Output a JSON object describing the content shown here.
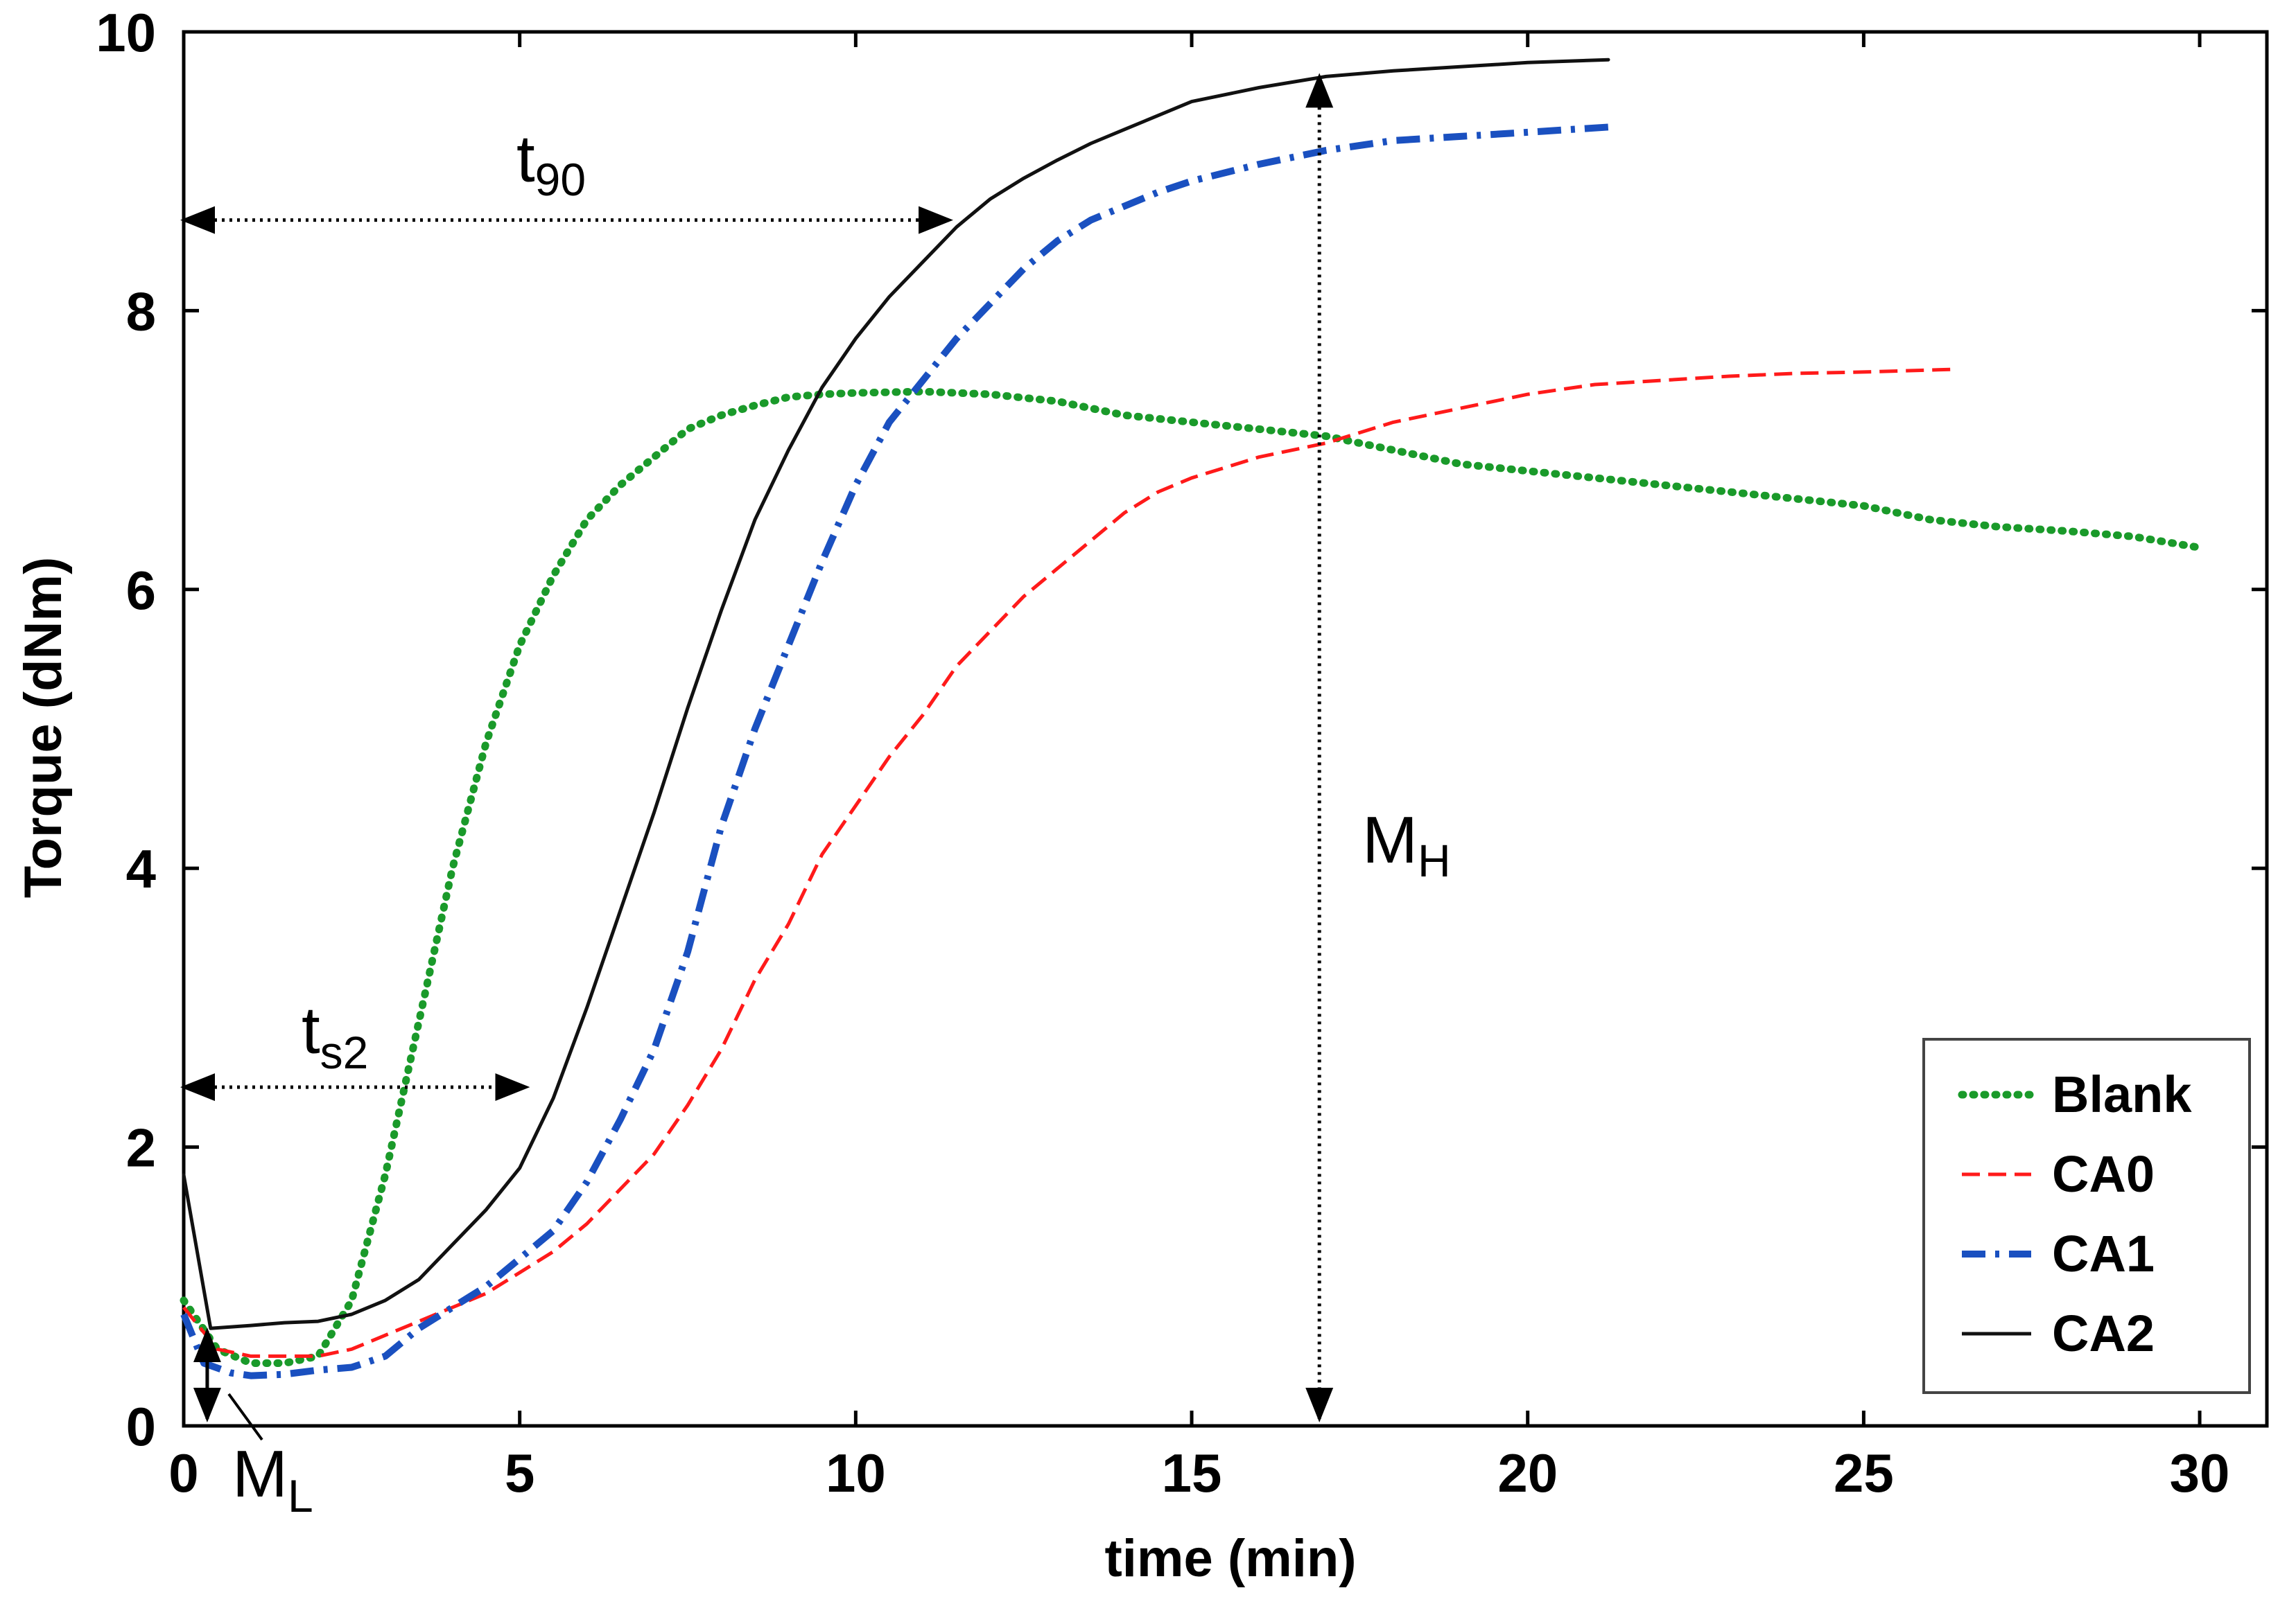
{
  "chart_data": {
    "type": "line",
    "title": "",
    "xlabel": "time (min)",
    "ylabel": "Torque (dNm)",
    "xlim": [
      0,
      31
    ],
    "ylim": [
      0,
      10
    ],
    "xticks": [
      0,
      5,
      10,
      15,
      20,
      25,
      30
    ],
    "yticks": [
      0,
      2,
      4,
      6,
      8,
      10
    ],
    "xtick_labels": [
      "0",
      "5",
      "10",
      "15",
      "20",
      "25",
      "30"
    ],
    "ytick_labels": [
      "0",
      "2",
      "4",
      "6",
      "8",
      "10"
    ],
    "grid": false,
    "legend_position": "bottom-right",
    "series": [
      {
        "name": "Blank",
        "color": "#1a9a2a",
        "style": "dotted",
        "points": [
          [
            0,
            0.9
          ],
          [
            0.5,
            0.55
          ],
          [
            1,
            0.45
          ],
          [
            1.5,
            0.45
          ],
          [
            2,
            0.5
          ],
          [
            2.5,
            0.9
          ],
          [
            3,
            1.8
          ],
          [
            3.5,
            2.9
          ],
          [
            4,
            4.0
          ],
          [
            4.5,
            4.9
          ],
          [
            5,
            5.6
          ],
          [
            5.5,
            6.1
          ],
          [
            6,
            6.5
          ],
          [
            6.5,
            6.75
          ],
          [
            7,
            6.95
          ],
          [
            7.5,
            7.15
          ],
          [
            8,
            7.25
          ],
          [
            8.5,
            7.32
          ],
          [
            9,
            7.38
          ],
          [
            9.5,
            7.4
          ],
          [
            10,
            7.41
          ],
          [
            11,
            7.42
          ],
          [
            12,
            7.4
          ],
          [
            13,
            7.35
          ],
          [
            14,
            7.25
          ],
          [
            15,
            7.2
          ],
          [
            16,
            7.15
          ],
          [
            17,
            7.1
          ],
          [
            18,
            7.0
          ],
          [
            19,
            6.9
          ],
          [
            20,
            6.85
          ],
          [
            21,
            6.8
          ],
          [
            22,
            6.75
          ],
          [
            23,
            6.7
          ],
          [
            24,
            6.65
          ],
          [
            25,
            6.6
          ],
          [
            26,
            6.5
          ],
          [
            27,
            6.45
          ],
          [
            28,
            6.42
          ],
          [
            29,
            6.38
          ],
          [
            30,
            6.3
          ]
        ]
      },
      {
        "name": "CA0",
        "color": "#ff1a1a",
        "style": "dashed",
        "points": [
          [
            0,
            0.85
          ],
          [
            0.5,
            0.55
          ],
          [
            1,
            0.5
          ],
          [
            1.5,
            0.5
          ],
          [
            2,
            0.5
          ],
          [
            2.5,
            0.55
          ],
          [
            3,
            0.65
          ],
          [
            3.5,
            0.75
          ],
          [
            4,
            0.85
          ],
          [
            4.5,
            0.95
          ],
          [
            5,
            1.1
          ],
          [
            5.5,
            1.25
          ],
          [
            6,
            1.45
          ],
          [
            6.5,
            1.7
          ],
          [
            7,
            1.95
          ],
          [
            7.5,
            2.3
          ],
          [
            8,
            2.7
          ],
          [
            8.5,
            3.2
          ],
          [
            9,
            3.6
          ],
          [
            9.5,
            4.1
          ],
          [
            10,
            4.45
          ],
          [
            10.5,
            4.8
          ],
          [
            11,
            5.1
          ],
          [
            11.5,
            5.45
          ],
          [
            12,
            5.7
          ],
          [
            12.5,
            5.95
          ],
          [
            13,
            6.15
          ],
          [
            13.5,
            6.35
          ],
          [
            14,
            6.55
          ],
          [
            14.5,
            6.7
          ],
          [
            15,
            6.8
          ],
          [
            16,
            6.95
          ],
          [
            17,
            7.05
          ],
          [
            18,
            7.2
          ],
          [
            19,
            7.3
          ],
          [
            20,
            7.4
          ],
          [
            21,
            7.47
          ],
          [
            22,
            7.5
          ],
          [
            23,
            7.53
          ],
          [
            24,
            7.55
          ],
          [
            25,
            7.56
          ],
          [
            26.4,
            7.58
          ]
        ]
      },
      {
        "name": "CA1",
        "color": "#1a50c0",
        "style": "dashdot",
        "points": [
          [
            0,
            0.8
          ],
          [
            0.3,
            0.45
          ],
          [
            0.7,
            0.38
          ],
          [
            1,
            0.36
          ],
          [
            1.5,
            0.37
          ],
          [
            2,
            0.4
          ],
          [
            2.5,
            0.42
          ],
          [
            3,
            0.5
          ],
          [
            3.5,
            0.7
          ],
          [
            4,
            0.85
          ],
          [
            4.5,
            1.0
          ],
          [
            5,
            1.2
          ],
          [
            5.5,
            1.4
          ],
          [
            6,
            1.75
          ],
          [
            6.5,
            2.2
          ],
          [
            7,
            2.7
          ],
          [
            7.5,
            3.4
          ],
          [
            8,
            4.3
          ],
          [
            8.5,
            5.0
          ],
          [
            9,
            5.6
          ],
          [
            9.5,
            6.2
          ],
          [
            10,
            6.75
          ],
          [
            10.5,
            7.2
          ],
          [
            11,
            7.5
          ],
          [
            11.5,
            7.8
          ],
          [
            12,
            8.05
          ],
          [
            12.5,
            8.3
          ],
          [
            13,
            8.5
          ],
          [
            13.5,
            8.65
          ],
          [
            14,
            8.75
          ],
          [
            14.5,
            8.85
          ],
          [
            15,
            8.93
          ],
          [
            16,
            9.05
          ],
          [
            17,
            9.15
          ],
          [
            18,
            9.22
          ],
          [
            19,
            9.25
          ],
          [
            20,
            9.28
          ],
          [
            21.3,
            9.32
          ]
        ]
      },
      {
        "name": "CA2",
        "color": "#111111",
        "style": "solid",
        "points": [
          [
            0,
            1.8
          ],
          [
            0.4,
            0.7
          ],
          [
            1,
            0.72
          ],
          [
            1.5,
            0.74
          ],
          [
            2,
            0.75
          ],
          [
            2.5,
            0.8
          ],
          [
            3,
            0.9
          ],
          [
            3.5,
            1.05
          ],
          [
            4,
            1.3
          ],
          [
            4.5,
            1.55
          ],
          [
            5,
            1.85
          ],
          [
            5.5,
            2.35
          ],
          [
            6,
            3.0
          ],
          [
            6.5,
            3.7
          ],
          [
            7,
            4.4
          ],
          [
            7.5,
            5.15
          ],
          [
            8,
            5.85
          ],
          [
            8.5,
            6.5
          ],
          [
            9,
            7.0
          ],
          [
            9.5,
            7.45
          ],
          [
            10,
            7.8
          ],
          [
            10.5,
            8.1
          ],
          [
            11,
            8.35
          ],
          [
            11.5,
            8.6
          ],
          [
            12,
            8.8
          ],
          [
            12.5,
            8.95
          ],
          [
            13,
            9.08
          ],
          [
            13.5,
            9.2
          ],
          [
            14,
            9.3
          ],
          [
            14.5,
            9.4
          ],
          [
            15,
            9.5
          ],
          [
            16,
            9.6
          ],
          [
            17,
            9.68
          ],
          [
            18,
            9.72
          ],
          [
            19,
            9.75
          ],
          [
            20,
            9.78
          ],
          [
            21.2,
            9.8
          ]
        ]
      }
    ],
    "annotations": {
      "t90": {
        "main": "t",
        "sub": "90",
        "from": [
          0,
          8.65
        ],
        "to": [
          11.4,
          8.65
        ]
      },
      "ts2": {
        "main": "t",
        "sub": "s2",
        "from": [
          0,
          2.43
        ],
        "to": [
          5.1,
          2.43
        ]
      },
      "MH": {
        "main": "M",
        "sub": "H",
        "from": [
          16.9,
          9.68
        ],
        "to": [
          16.9,
          0.05
        ]
      },
      "ML": {
        "main": "M",
        "sub": "L",
        "from": [
          0.35,
          0.05
        ],
        "to": [
          0.35,
          0.68
        ]
      }
    }
  }
}
